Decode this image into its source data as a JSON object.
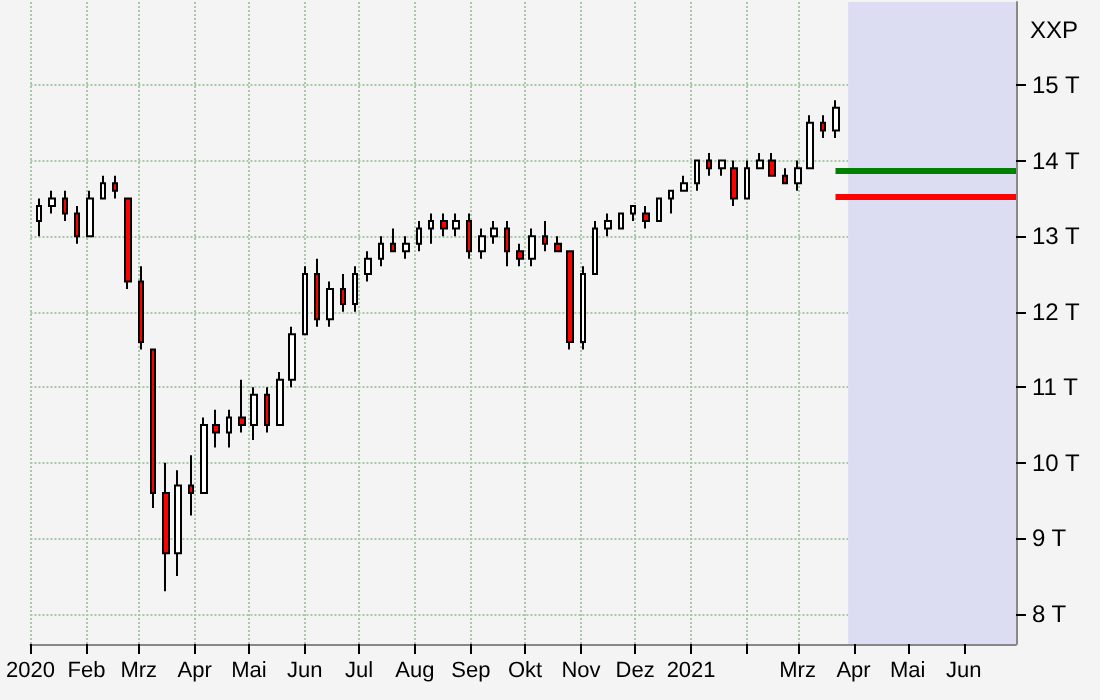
{
  "chart_data": {
    "type": "candlestick",
    "title": "XXP",
    "x": [
      "2020-01-06",
      "2020-01-13",
      "2020-01-20",
      "2020-01-27",
      "2020-02-03",
      "2020-02-10",
      "2020-02-17",
      "2020-02-24",
      "2020-03-02",
      "2020-03-09",
      "2020-03-16",
      "2020-03-23",
      "2020-03-30",
      "2020-04-06",
      "2020-04-13",
      "2020-04-20",
      "2020-04-27",
      "2020-05-04",
      "2020-05-11",
      "2020-05-18",
      "2020-05-25",
      "2020-06-01",
      "2020-06-08",
      "2020-06-15",
      "2020-06-22",
      "2020-06-29",
      "2020-07-06",
      "2020-07-13",
      "2020-07-20",
      "2020-07-27",
      "2020-08-03",
      "2020-08-10",
      "2020-08-17",
      "2020-08-24",
      "2020-08-31",
      "2020-09-07",
      "2020-09-14",
      "2020-09-21",
      "2020-09-28",
      "2020-10-05",
      "2020-10-12",
      "2020-10-19",
      "2020-10-26",
      "2020-11-02",
      "2020-11-09",
      "2020-11-16",
      "2020-11-23",
      "2020-11-30",
      "2020-12-07",
      "2020-12-14",
      "2020-12-21",
      "2020-12-28",
      "2021-01-04",
      "2021-01-11",
      "2021-01-18",
      "2021-01-25",
      "2021-02-01",
      "2021-02-08",
      "2021-02-15",
      "2021-02-22",
      "2021-03-01",
      "2021-03-08",
      "2021-03-15",
      "2021-03-22"
    ],
    "ohlc": [
      [
        13.2,
        13.5,
        13.0,
        13.4
      ],
      [
        13.4,
        13.6,
        13.3,
        13.5
      ],
      [
        13.5,
        13.6,
        13.2,
        13.3
      ],
      [
        13.3,
        13.4,
        12.9,
        13.0
      ],
      [
        13.0,
        13.6,
        13.0,
        13.5
      ],
      [
        13.5,
        13.8,
        13.5,
        13.7
      ],
      [
        13.7,
        13.8,
        13.5,
        13.6
      ],
      [
        13.5,
        13.5,
        12.3,
        12.4
      ],
      [
        12.4,
        12.6,
        11.5,
        11.6
      ],
      [
        11.5,
        11.5,
        9.4,
        9.6
      ],
      [
        9.6,
        10.0,
        8.3,
        8.8
      ],
      [
        8.8,
        9.9,
        8.5,
        9.7
      ],
      [
        9.7,
        10.1,
        9.3,
        9.6
      ],
      [
        9.6,
        10.6,
        9.6,
        10.5
      ],
      [
        10.5,
        10.7,
        10.2,
        10.4
      ],
      [
        10.4,
        10.7,
        10.2,
        10.6
      ],
      [
        10.6,
        11.1,
        10.4,
        10.5
      ],
      [
        10.5,
        11.0,
        10.3,
        10.9
      ],
      [
        10.9,
        11.0,
        10.4,
        10.5
      ],
      [
        10.5,
        11.2,
        10.5,
        11.1
      ],
      [
        11.1,
        11.8,
        11.0,
        11.7
      ],
      [
        11.7,
        12.6,
        11.7,
        12.5
      ],
      [
        12.5,
        12.7,
        11.8,
        11.9
      ],
      [
        11.9,
        12.4,
        11.8,
        12.3
      ],
      [
        12.3,
        12.5,
        12.0,
        12.1
      ],
      [
        12.1,
        12.6,
        12.0,
        12.5
      ],
      [
        12.5,
        12.8,
        12.4,
        12.7
      ],
      [
        12.7,
        13.0,
        12.6,
        12.9
      ],
      [
        12.9,
        13.1,
        12.8,
        12.8
      ],
      [
        12.8,
        13.0,
        12.7,
        12.9
      ],
      [
        12.9,
        13.2,
        12.8,
        13.1
      ],
      [
        13.1,
        13.3,
        12.9,
        13.2
      ],
      [
        13.2,
        13.3,
        13.0,
        13.1
      ],
      [
        13.1,
        13.3,
        13.0,
        13.2
      ],
      [
        13.2,
        13.3,
        12.7,
        12.8
      ],
      [
        12.8,
        13.1,
        12.7,
        13.0
      ],
      [
        13.0,
        13.2,
        12.9,
        13.1
      ],
      [
        13.1,
        13.2,
        12.6,
        12.8
      ],
      [
        12.8,
        12.9,
        12.6,
        12.7
      ],
      [
        12.7,
        13.1,
        12.6,
        13.0
      ],
      [
        13.0,
        13.2,
        12.8,
        12.9
      ],
      [
        12.9,
        13.0,
        12.8,
        12.8
      ],
      [
        12.8,
        12.8,
        11.5,
        11.6
      ],
      [
        11.6,
        12.6,
        11.5,
        12.5
      ],
      [
        12.5,
        13.2,
        12.5,
        13.1
      ],
      [
        13.1,
        13.3,
        13.0,
        13.2
      ],
      [
        13.1,
        13.3,
        13.1,
        13.3
      ],
      [
        13.3,
        13.4,
        13.2,
        13.4
      ],
      [
        13.3,
        13.4,
        13.1,
        13.2
      ],
      [
        13.2,
        13.5,
        13.2,
        13.5
      ],
      [
        13.5,
        13.6,
        13.3,
        13.6
      ],
      [
        13.6,
        13.8,
        13.6,
        13.7
      ],
      [
        13.7,
        14.0,
        13.6,
        14.0
      ],
      [
        14.0,
        14.1,
        13.8,
        13.9
      ],
      [
        13.9,
        14.0,
        13.8,
        14.0
      ],
      [
        13.9,
        14.0,
        13.4,
        13.5
      ],
      [
        13.5,
        14.0,
        13.5,
        13.9
      ],
      [
        13.9,
        14.1,
        13.9,
        14.0
      ],
      [
        14.0,
        14.1,
        13.8,
        13.8
      ],
      [
        13.8,
        13.9,
        13.7,
        13.7
      ],
      [
        13.7,
        14.0,
        13.6,
        13.9
      ],
      [
        13.9,
        14.6,
        13.9,
        14.5
      ],
      [
        14.5,
        14.6,
        14.3,
        14.4
      ],
      [
        14.4,
        14.8,
        14.3,
        14.7
      ]
    ],
    "colors": [
      "#ffffff",
      "#ffffff",
      "#ff0000",
      "#ff0000",
      "#ffffff",
      "#ffffff",
      "#ff0000",
      "#ff0000",
      "#ff0000",
      "#ff0000",
      "#ff0000",
      "#ffffff",
      "#ff0000",
      "#ffffff",
      "#ff0000",
      "#ffffff",
      "#ff0000",
      "#ffffff",
      "#ff0000",
      "#ffffff",
      "#ffffff",
      "#ffffff",
      "#ff0000",
      "#ffffff",
      "#ff0000",
      "#ffffff",
      "#ffffff",
      "#ffffff",
      "#ff0000",
      "#ffffff",
      "#ffffff",
      "#ffffff",
      "#ff0000",
      "#ffffff",
      "#ff0000",
      "#ffffff",
      "#ffffff",
      "#ff0000",
      "#ff0000",
      "#ffffff",
      "#ff0000",
      "#ff0000",
      "#ff0000",
      "#ffffff",
      "#ffffff",
      "#ffffff",
      "#ffffff",
      "#ffffff",
      "#ff0000",
      "#ffffff",
      "#ffffff",
      "#ffffff",
      "#ffffff",
      "#ff0000",
      "#ffffff",
      "#ff0000",
      "#ffffff",
      "#ffffff",
      "#ff0000",
      "#ff0000",
      "#ffffff",
      "#ffffff",
      "#ff0000",
      "#ffffff"
    ],
    "xlim": [
      "2020-01-01",
      "2021-06-30"
    ],
    "xticks": [
      {
        "value": "2020-01-01",
        "label": "2020"
      },
      {
        "value": "2020-02-01",
        "label": "Feb"
      },
      {
        "value": "2020-03-01",
        "label": "Mrz"
      },
      {
        "value": "2020-04-01",
        "label": "Apr"
      },
      {
        "value": "2020-05-01",
        "label": "Mai"
      },
      {
        "value": "2020-06-01",
        "label": "Jun"
      },
      {
        "value": "2020-07-01",
        "label": "Jul"
      },
      {
        "value": "2020-08-01",
        "label": "Aug"
      },
      {
        "value": "2020-09-01",
        "label": "Sep"
      },
      {
        "value": "2020-10-01",
        "label": "Okt"
      },
      {
        "value": "2020-11-01",
        "label": "Nov"
      },
      {
        "value": "2020-12-01",
        "label": "Dez"
      },
      {
        "value": "2021-01-01",
        "label": "2021"
      },
      {
        "value": "2021-02-01",
        "label": null
      },
      {
        "value": "2021-03-01",
        "label": "Mrz"
      },
      {
        "value": "2021-04-01",
        "label": "Apr"
      },
      {
        "value": "2021-05-01",
        "label": "Mai"
      },
      {
        "value": "2021-06-01",
        "label": "Jun"
      }
    ],
    "ylim": [
      7.6,
      16.1
    ],
    "yticks": [
      {
        "value": 8,
        "label": "8 T"
      },
      {
        "value": 9,
        "label": "9 T"
      },
      {
        "value": 10,
        "label": "10 T"
      },
      {
        "value": 11,
        "label": "11 T"
      },
      {
        "value": 12,
        "label": "12 T"
      },
      {
        "value": 13,
        "label": "13 T"
      },
      {
        "value": 14,
        "label": "14 T"
      },
      {
        "value": 15,
        "label": "15 T"
      }
    ],
    "grid": true,
    "ref_lines": [
      {
        "axis": "y",
        "value": 13.87,
        "color": "#008000"
      },
      {
        "axis": "y",
        "value": 13.53,
        "color": "#ff0000"
      }
    ],
    "bands": [
      {
        "axis": "x",
        "from": "2021-03-29",
        "to": "2021-06-30",
        "color": "#dcddf3"
      }
    ]
  }
}
